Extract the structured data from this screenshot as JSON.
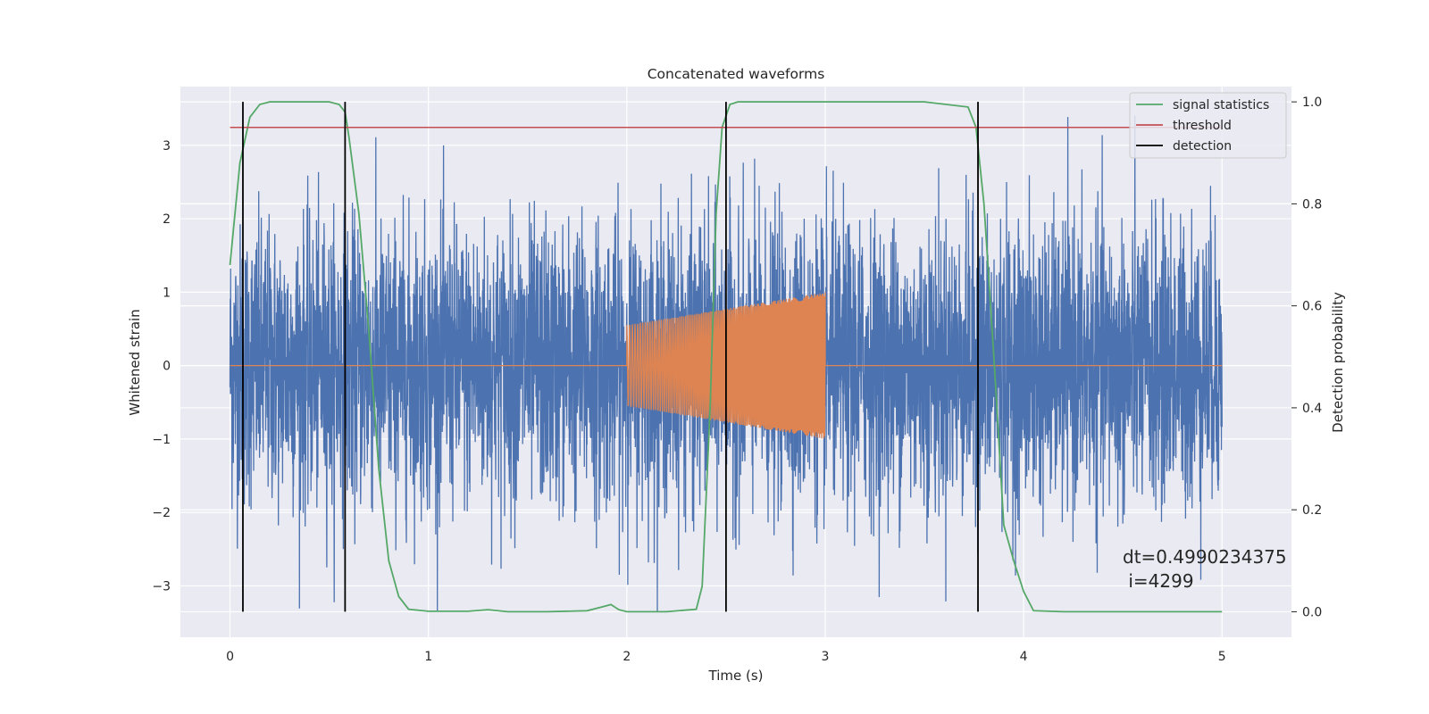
{
  "chart_data": {
    "type": "line",
    "title": "Concatenated waveforms",
    "xlabel": "Time (s)",
    "ylabel_left": "Whitened strain",
    "ylabel_right": "Detection probability",
    "xlim": [
      -0.25,
      5.35
    ],
    "ylim_left": [
      -3.7,
      3.8
    ],
    "ylim_right": [
      -0.05,
      1.03
    ],
    "x_ticks": [
      0,
      1,
      2,
      3,
      4,
      5
    ],
    "y_ticks_left": [
      -3,
      -2,
      -1,
      0,
      1,
      2,
      3
    ],
    "y_ticks_right": [
      0.0,
      0.2,
      0.4,
      0.6,
      0.8,
      1.0
    ],
    "x_tick_labels": [
      "0",
      "1",
      "2",
      "3",
      "4",
      "5"
    ],
    "y_tick_labels_left": [
      "−3",
      "−2",
      "−1",
      "0",
      "1",
      "2",
      "3"
    ],
    "y_tick_labels_right": [
      "0.0",
      "0.2",
      "0.4",
      "0.6",
      "0.8",
      "1.0"
    ],
    "grid": true,
    "legend": {
      "position": "top-right",
      "entries": [
        {
          "label": "signal statistics",
          "color": "#55a868"
        },
        {
          "label": "threshold",
          "color": "#c44e52"
        },
        {
          "label": "detection",
          "color": "#000000"
        }
      ]
    },
    "series": [
      {
        "label": "signal statistics",
        "axis": "right",
        "color": "#55a868",
        "x": [
          0.0,
          0.05,
          0.1,
          0.15,
          0.2,
          0.3,
          0.5,
          0.55,
          0.58,
          0.6,
          0.65,
          0.7,
          0.75,
          0.8,
          0.85,
          0.9,
          1.0,
          1.2,
          1.3,
          1.4,
          1.6,
          1.8,
          1.88,
          1.92,
          1.96,
          2.0,
          2.2,
          2.35,
          2.38,
          2.42,
          2.45,
          2.48,
          2.52,
          2.56,
          2.6,
          3.0,
          3.5,
          3.72,
          3.76,
          3.8,
          3.85,
          3.9,
          3.95,
          4.0,
          4.05,
          4.2,
          4.6,
          5.0
        ],
        "values": [
          0.68,
          0.88,
          0.97,
          0.995,
          1.0,
          1.0,
          1.0,
          0.995,
          0.98,
          0.93,
          0.78,
          0.55,
          0.28,
          0.1,
          0.03,
          0.005,
          0.001,
          0.001,
          0.004,
          0.0,
          0.0,
          0.002,
          0.01,
          0.014,
          0.004,
          0.0,
          0.0,
          0.005,
          0.05,
          0.4,
          0.78,
          0.95,
          0.995,
          1.0,
          1.0,
          1.0,
          1.0,
          0.99,
          0.95,
          0.8,
          0.5,
          0.17,
          0.1,
          0.04,
          0.002,
          0.0,
          0.0,
          0.0
        ]
      },
      {
        "label": "threshold",
        "axis": "right",
        "color": "#c44e52",
        "x": [
          0.0,
          5.0
        ],
        "values": [
          0.95,
          0.95
        ]
      },
      {
        "label": "detection",
        "axis": "right",
        "color": "#000000",
        "type": "vertical-lines",
        "x": [
          0.065,
          0.58,
          2.5,
          3.77
        ],
        "y_range": [
          0.0,
          1.0
        ]
      },
      {
        "label": "",
        "axis": "left",
        "color": "#4c72b0",
        "type": "noise",
        "x_range": [
          0.0,
          5.0
        ],
        "approx_std": 0.95,
        "approx_range": [
          -3.35,
          3.45
        ]
      },
      {
        "label": "",
        "axis": "left",
        "color": "#dd8452",
        "type": "injected-waveform",
        "x_range": [
          2.0,
          3.0
        ],
        "amplitude_start": 0.55,
        "amplitude_end": 1.0,
        "baseline": 0.0
      }
    ],
    "annotation": {
      "line1": "dt=0.4990234375",
      "line2": " i=4299"
    }
  }
}
